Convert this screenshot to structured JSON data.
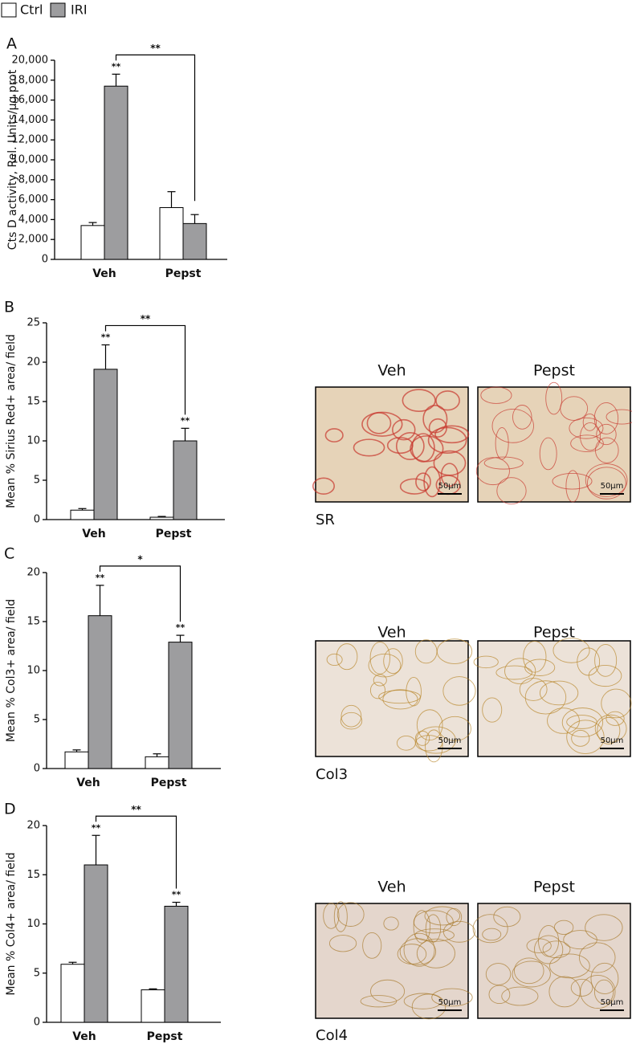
{
  "chart_data": [
    {
      "type": "bar",
      "panel": "A",
      "ylabel": "Cts D activity, Rel. Units/µg prot",
      "categories": [
        "Veh",
        "Pepst"
      ],
      "series": [
        {
          "name": "Ctrl",
          "color": "#ffffff",
          "values": [
            3400,
            5200
          ],
          "errors": [
            300,
            1600
          ],
          "significance": [
            null,
            null
          ]
        },
        {
          "name": "IRI",
          "color": "#9d9d9f",
          "values": [
            17400,
            3600
          ],
          "errors": [
            1200,
            900
          ],
          "significance": [
            "**",
            null
          ]
        }
      ],
      "comparison": "**",
      "ylim": [
        0,
        20000
      ],
      "yticks": [
        0,
        {
          "value": 2000,
          "label": "2,000"
        },
        {
          "value": 4000,
          "label": "4,000"
        },
        {
          "value": 6000,
          "label": "6,000"
        },
        {
          "value": 8000,
          "label": "8,000"
        },
        {
          "value": 10000,
          "label": "10,000"
        },
        {
          "value": 12000,
          "label": "12,000"
        },
        {
          "value": 14000,
          "label": "14,000"
        },
        {
          "value": 16000,
          "label": "16,000"
        },
        {
          "value": 18000,
          "label": "18,000"
        },
        {
          "value": 20000,
          "label": "20,000"
        }
      ]
    },
    {
      "type": "bar",
      "panel": "B",
      "ylabel": "Mean % Sirius Red+ area/ field",
      "categories": [
        "Veh",
        "Pepst"
      ],
      "series": [
        {
          "name": "Ctrl",
          "color": "#ffffff",
          "values": [
            1.2,
            0.3
          ],
          "errors": [
            0.2,
            0.1
          ],
          "significance": [
            null,
            null
          ]
        },
        {
          "name": "IRI",
          "color": "#9d9d9f",
          "values": [
            19.1,
            10
          ],
          "errors": [
            3.1,
            1.6
          ],
          "significance": [
            "**",
            "**"
          ]
        }
      ],
      "comparison": "**",
      "ylim": [
        0,
        25
      ],
      "yticks": [
        0,
        5,
        10,
        15,
        20,
        25
      ]
    },
    {
      "type": "bar",
      "panel": "C",
      "ylabel": "Mean % Col3+ area/ field",
      "categories": [
        "Veh",
        "Pepst"
      ],
      "series": [
        {
          "name": "Ctrl",
          "color": "#ffffff",
          "values": [
            1.7,
            1.2
          ],
          "errors": [
            0.2,
            0.3
          ],
          "significance": [
            null,
            null
          ]
        },
        {
          "name": "IRI",
          "color": "#9d9d9f",
          "values": [
            15.6,
            12.9
          ],
          "errors": [
            3.1,
            0.7
          ],
          "significance": [
            "**",
            "**"
          ]
        }
      ],
      "comparison": "*",
      "ylim": [
        0,
        20
      ],
      "yticks": [
        0,
        5,
        10,
        15,
        20
      ]
    },
    {
      "type": "bar",
      "panel": "D",
      "ylabel": "Mean % Col4+ area/ field",
      "categories": [
        "Veh",
        "Pepst"
      ],
      "series": [
        {
          "name": "Ctrl",
          "color": "#ffffff",
          "values": [
            5.9,
            3.3
          ],
          "errors": [
            0.2,
            0.1
          ],
          "significance": [
            null,
            null
          ]
        },
        {
          "name": "IRI",
          "color": "#9d9d9f",
          "values": [
            16,
            11.8
          ],
          "errors": [
            3,
            0.4
          ],
          "significance": [
            "**",
            "**"
          ]
        }
      ],
      "comparison": "**",
      "ylim": [
        0,
        20
      ],
      "yticks": [
        0,
        5,
        10,
        15,
        20
      ]
    }
  ],
  "micrographs": [
    {
      "caption": "SR",
      "panels": [
        {
          "label": "Veh",
          "scale": "50µm"
        },
        {
          "label": "Pepst",
          "scale": "50µm"
        }
      ]
    },
    {
      "caption": "Col3",
      "panels": [
        {
          "label": "Veh",
          "scale": "50µm"
        },
        {
          "label": "Pepst",
          "scale": "50µm"
        }
      ]
    },
    {
      "caption": "Col4",
      "panels": [
        {
          "label": "Veh",
          "scale": "50µm"
        },
        {
          "label": "Pepst",
          "scale": "50µm"
        }
      ]
    }
  ]
}
